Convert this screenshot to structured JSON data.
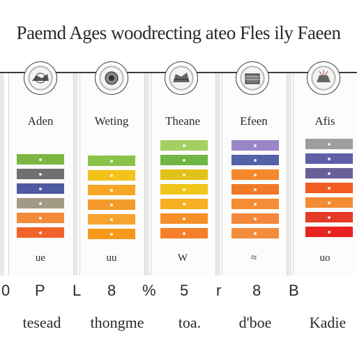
{
  "title": "Paemd Ages woodrecting ateo Fles ily Faeen",
  "columns": [
    {
      "label": "Aden",
      "footer": "ue",
      "bars": [
        {
          "color": "#7cb642"
        },
        {
          "color": "#6f6f6f"
        },
        {
          "color": "#4e5aa0"
        },
        {
          "color": "#a39a85"
        },
        {
          "color": "#f28a3a"
        },
        {
          "color": "#f0632b"
        }
      ]
    },
    {
      "label": "Weting",
      "footer": "uu",
      "bars": [
        {
          "color": "#8bc34a"
        },
        {
          "color": "#f4c219"
        },
        {
          "color": "#f6a623"
        },
        {
          "color": "#f39a2b"
        },
        {
          "color": "#f4a42f"
        },
        {
          "color": "#f6981c"
        }
      ]
    },
    {
      "label": "Theane",
      "footer": "W",
      "bars": [
        {
          "color": "#a5cf63"
        },
        {
          "color": "#6fb645"
        },
        {
          "color": "#e2c21a"
        },
        {
          "color": "#f2c51b"
        },
        {
          "color": "#f6b021"
        },
        {
          "color": "#f68f27"
        },
        {
          "color": "#f57f2a"
        }
      ]
    },
    {
      "label": "Efeen",
      "footer": "≈",
      "bars": [
        {
          "color": "#9a86c7"
        },
        {
          "color": "#5561a8"
        },
        {
          "color": "#f4882b"
        },
        {
          "color": "#f27a27"
        },
        {
          "color": "#f48d33"
        },
        {
          "color": "#f6873a"
        },
        {
          "color": "#f28d3b"
        }
      ]
    },
    {
      "label": "Afis",
      "footer": "uo",
      "bars": [
        {
          "color": "#9e9e9e"
        },
        {
          "color": "#5e5fa7"
        },
        {
          "color": "#6a5e99"
        },
        {
          "color": "#f25b21"
        },
        {
          "color": "#f58a35"
        },
        {
          "color": "#e53a28"
        },
        {
          "color": "#e82220"
        }
      ]
    }
  ],
  "ticks": [
    "0",
    "P",
    "L",
    "8",
    "%",
    "5",
    "r",
    "8",
    "B"
  ],
  "bottom_labels": [
    "tesead",
    "thongme",
    "toa.",
    "d'boe",
    "Kadie"
  ]
}
